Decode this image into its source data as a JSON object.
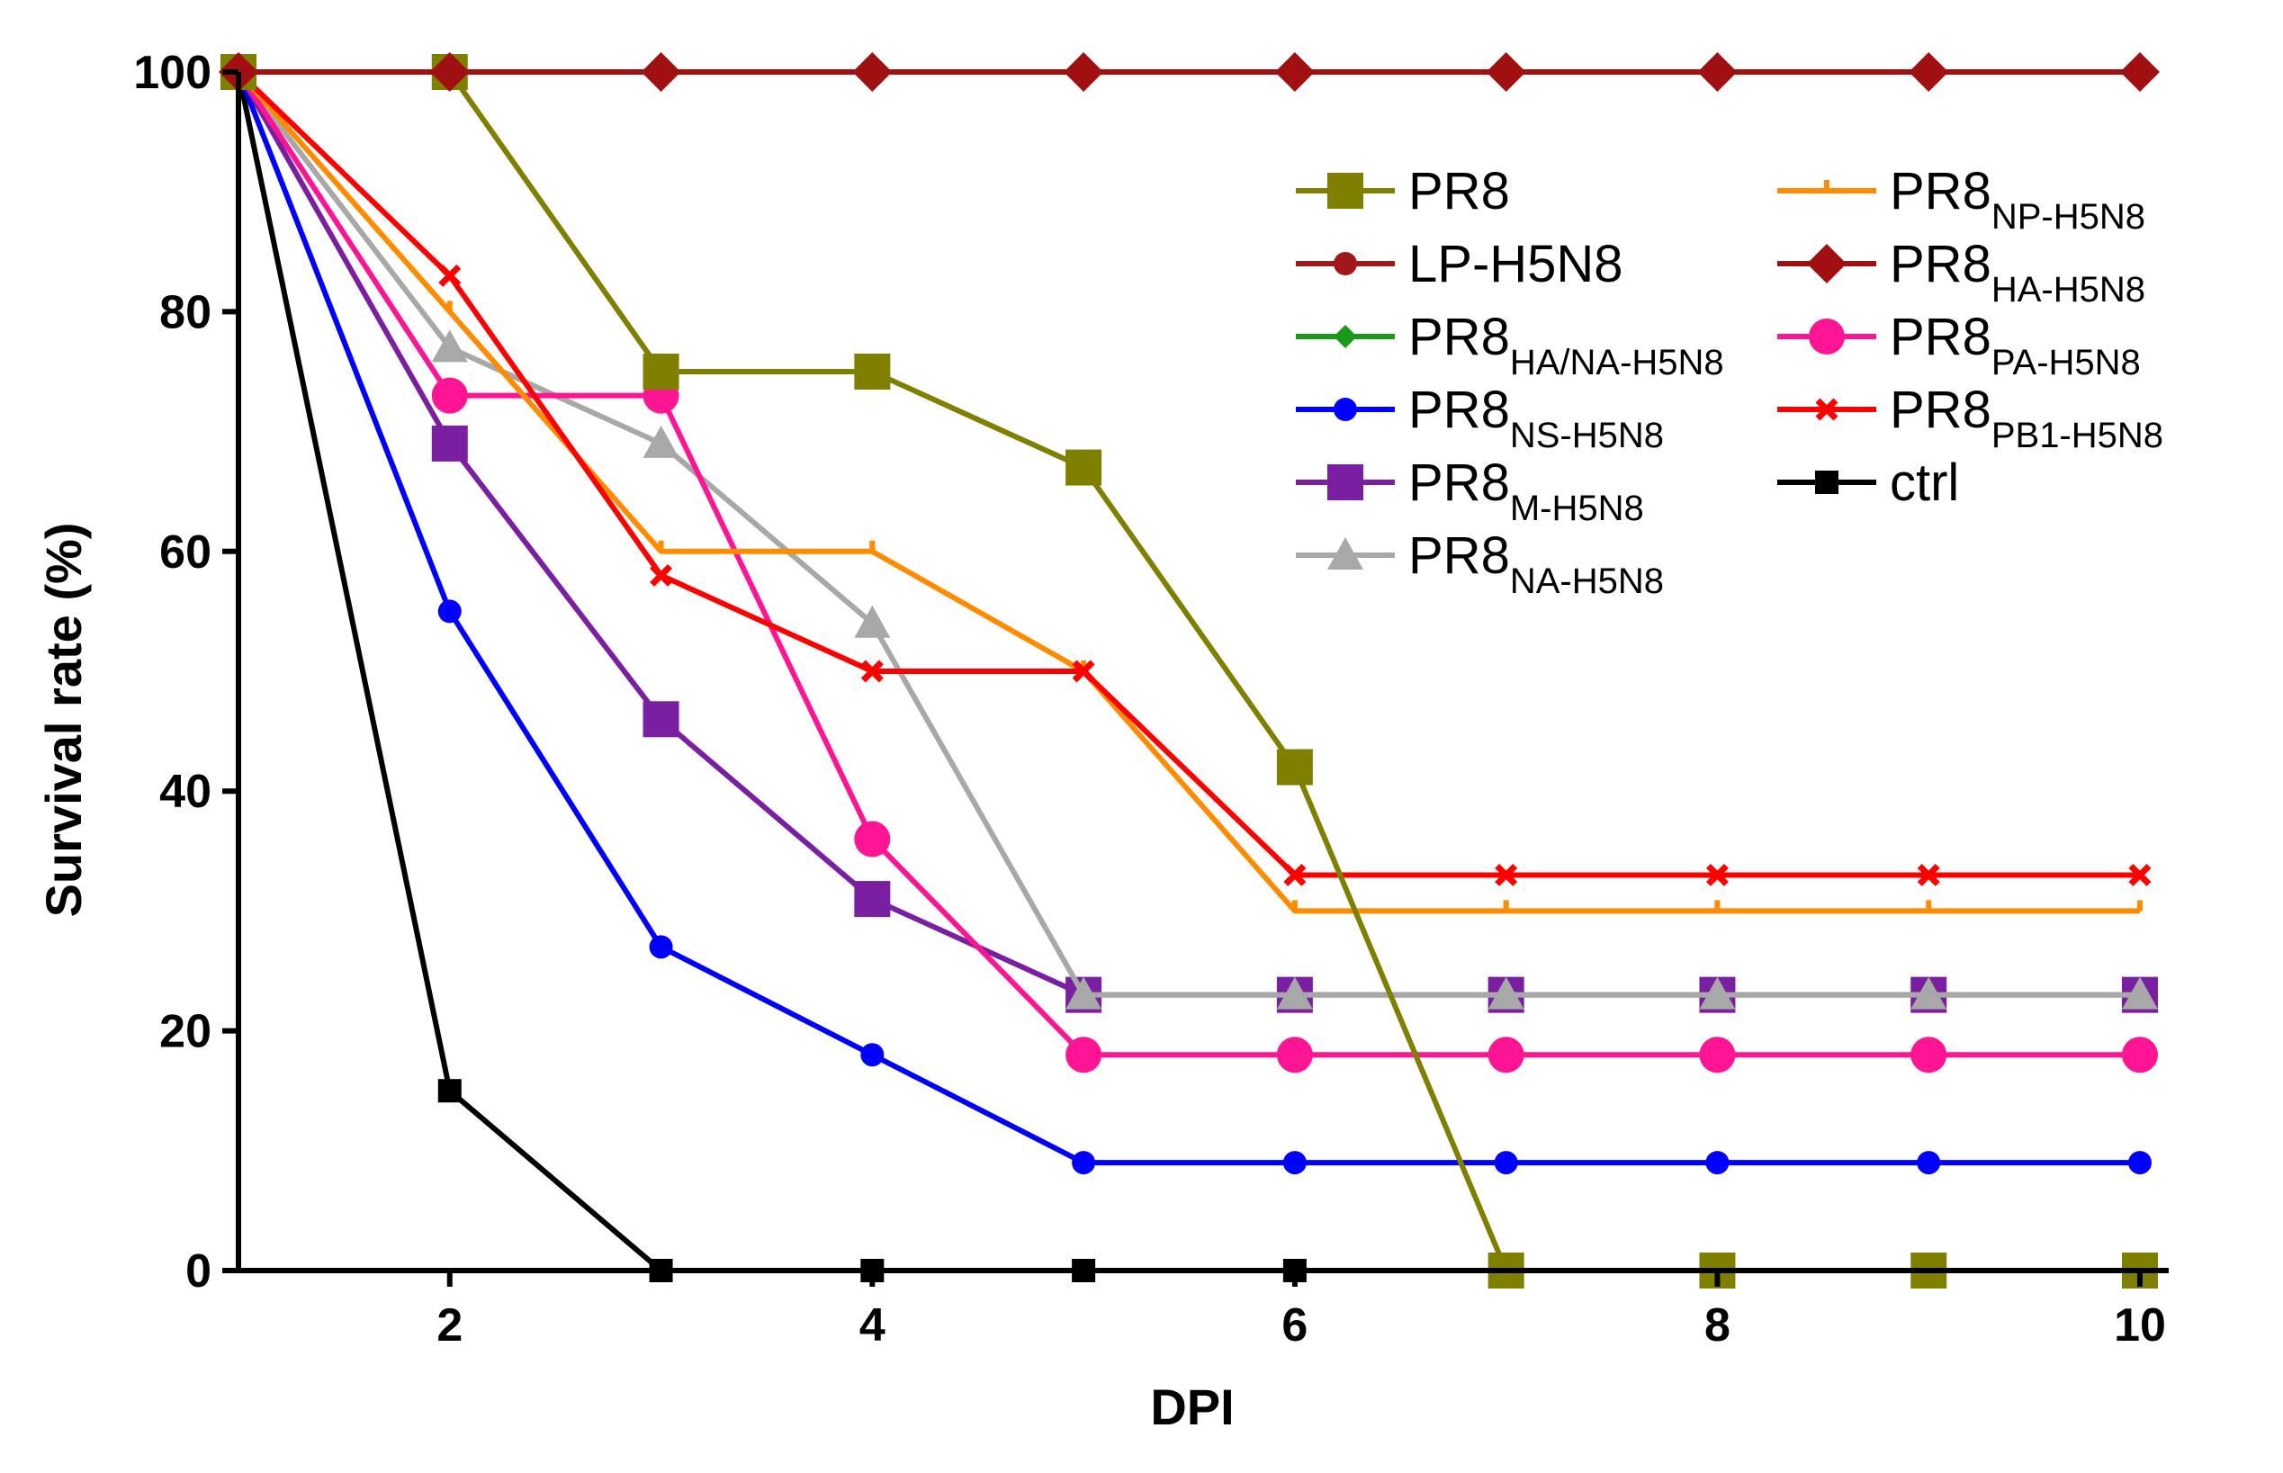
{
  "chart_data": {
    "type": "line",
    "title": "",
    "xlabel": "DPI",
    "ylabel": "Survival rate (%)",
    "xlim": [
      1,
      10
    ],
    "ylim": [
      0,
      100
    ],
    "x_ticks": [
      "2",
      "4",
      "6",
      "8",
      "10"
    ],
    "y_ticks": [
      "0",
      "20",
      "40",
      "60",
      "80",
      "100"
    ],
    "legend_position": "top-right",
    "x": [
      1,
      2,
      3,
      4,
      5,
      6,
      7,
      8,
      9,
      10
    ],
    "series": [
      {
        "name": "ctrl",
        "base": "ctrl",
        "sub": "",
        "color": "#000000",
        "marker": "square",
        "values": [
          100,
          15,
          0,
          0,
          0,
          0,
          null,
          null,
          null,
          null
        ]
      },
      {
        "name": "PR8_NS-H5N8",
        "base": "PR8",
        "sub": "NS-H5N8",
        "color": "#0000ff",
        "marker": "circle-small",
        "values": [
          100,
          55,
          27,
          18,
          9,
          9,
          9,
          9,
          9,
          9
        ]
      },
      {
        "name": "PR8_M-H5N8",
        "base": "PR8",
        "sub": "M-H5N8",
        "color": "#7b1fa2",
        "marker": "square-large",
        "values": [
          100,
          69,
          46,
          31,
          23,
          23,
          23,
          23,
          23,
          23
        ]
      },
      {
        "name": "PR8_NA-H5N8",
        "base": "PR8",
        "sub": "NA-H5N8",
        "color": "#a8a8a8",
        "marker": "triangle",
        "values": [
          100,
          77,
          69,
          54,
          23,
          23,
          23,
          23,
          23,
          23
        ]
      },
      {
        "name": "PR8_PA-H5N8",
        "base": "PR8",
        "sub": "PA-H5N8",
        "color": "#ff1493",
        "marker": "circle-large",
        "values": [
          100,
          73,
          73,
          36,
          18,
          18,
          18,
          18,
          18,
          18
        ]
      },
      {
        "name": "PR8_NP-H5N8",
        "base": "PR8",
        "sub": "NP-H5N8",
        "color": "#ff8c00",
        "marker": "tick",
        "values": [
          100,
          80,
          60,
          60,
          50,
          30,
          30,
          30,
          30,
          30
        ]
      },
      {
        "name": "PR8_PB1-H5N8",
        "base": "PR8",
        "sub": "PB1-H5N8",
        "color": "#ff0000",
        "marker": "cross",
        "values": [
          100,
          83,
          58,
          50,
          50,
          33,
          33,
          33,
          33,
          33
        ]
      },
      {
        "name": "PR8",
        "base": "PR8",
        "sub": "",
        "color": "#808000",
        "marker": "square-large",
        "values": [
          100,
          100,
          75,
          75,
          67,
          42,
          0,
          0,
          0,
          0
        ]
      },
      {
        "name": "PR8_HA/NA-H5N8",
        "base": "PR8",
        "sub": "HA/NA-H5N8",
        "color": "#1a9a1a",
        "marker": "diamond-small",
        "values": [
          100,
          100,
          100,
          100,
          100,
          100,
          100,
          100,
          100,
          100
        ]
      },
      {
        "name": "LP-H5N8",
        "base": "LP-H5N8",
        "sub": "",
        "color": "#a01818",
        "marker": "circle-small",
        "values": [
          100,
          100,
          100,
          100,
          100,
          100,
          100,
          100,
          100,
          100
        ]
      },
      {
        "name": "PR8_HA-H5N8",
        "base": "PR8",
        "sub": "HA-H5N8",
        "color": "#a01010",
        "marker": "diamond",
        "values": [
          100,
          100,
          100,
          100,
          100,
          100,
          100,
          100,
          100,
          100
        ]
      }
    ],
    "legend_left": [
      "PR8",
      "LP-H5N8",
      "PR8_HA/NA-H5N8",
      "PR8_NS-H5N8",
      "PR8_M-H5N8",
      "PR8_NA-H5N8"
    ],
    "legend_right": [
      "PR8_NP-H5N8",
      "PR8_HA-H5N8",
      "PR8_PA-H5N8",
      "PR8_PB1-H5N8",
      "ctrl"
    ]
  }
}
